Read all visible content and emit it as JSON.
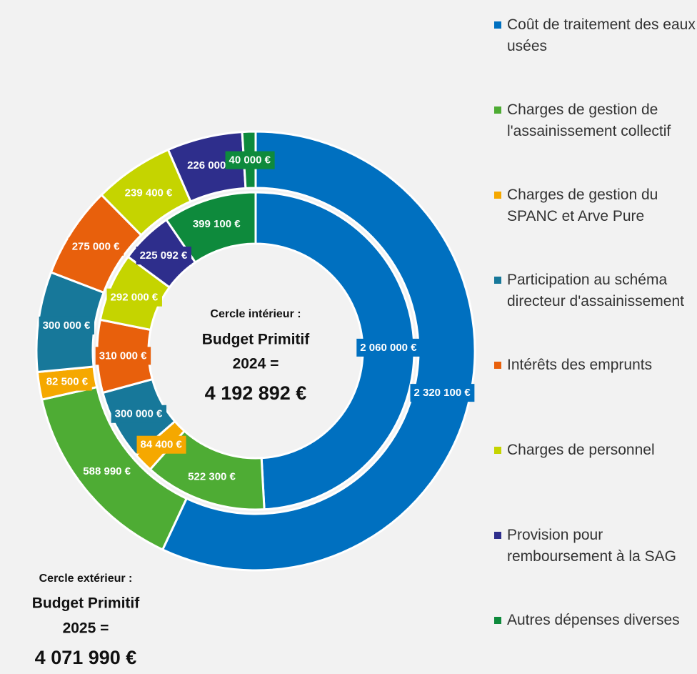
{
  "chart_data": {
    "type": "donut",
    "categories": [
      "Coût de traitement des eaux usées",
      "Charges de gestion de l'assainissement collectif",
      "Charges de gestion du SPANC et Arve Pure",
      "Participation au schéma directeur d'assainissement",
      "Intérêts des emprunts",
      "Charges de personnel",
      "Provision pour remboursement à la SAG",
      "Autres dépenses diverses"
    ],
    "colors": [
      "#0070c0",
      "#4eac34",
      "#f5a800",
      "#17789a",
      "#e8600c",
      "#c5d400",
      "#2e2e8c",
      "#0e8a3c"
    ],
    "series": [
      {
        "values": [
          2060000,
          522300,
          84400,
          300000,
          310000,
          292000,
          225092,
          399100
        ],
        "value_labels": [
          "2 060 000 €",
          "522 300 €",
          "84 400 €",
          "300 000 €",
          "310 000 €",
          "292 000 €",
          "225 092 €",
          "399 100 €"
        ],
        "annotation": [
          "Cercle intérieur :",
          "Budget Primitif",
          "2024 =",
          "4 192 892 €"
        ]
      },
      {
        "values": [
          2320100,
          588990,
          82500,
          300000,
          275000,
          239400,
          226000,
          40000
        ],
        "value_labels": [
          "2 320 100 €",
          "588 990 €",
          "82 500 €",
          "300 000 €",
          "275 000 €",
          "239 400 €",
          "226 000 €",
          "40 000 €"
        ],
        "annotation": [
          "Cercle extérieur :",
          "Budget Primitif",
          "2025 =",
          "4 071 990 €"
        ]
      }
    ],
    "legend": "right"
  }
}
